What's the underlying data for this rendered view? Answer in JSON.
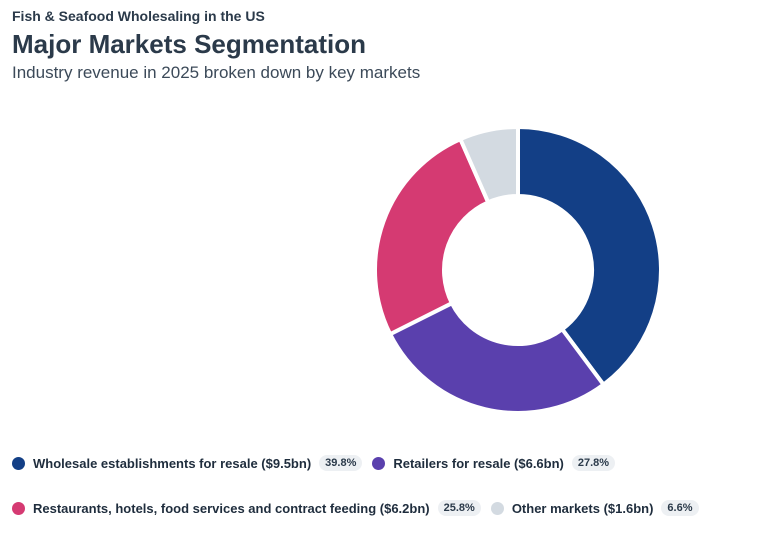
{
  "header": {
    "supertitle": "Fish & Seafood Wholesaling in the US",
    "title": "Major Markets Segmentation",
    "subtitle": "Industry revenue in 2025 broken down by key markets"
  },
  "chart_data": {
    "type": "pie",
    "variant": "donut",
    "title": "Major Markets Segmentation",
    "subtitle": "Industry revenue in 2025 broken down by key markets",
    "unit": "%",
    "legend_placement": "bottom",
    "slices": [
      {
        "label": "Wholesale establishments for resale ($9.5bn)",
        "value": 39.8,
        "value_label": "39.8%",
        "color": "#133f86"
      },
      {
        "label": "Retailers for resale ($6.6bn)",
        "value": 27.8,
        "value_label": "27.8%",
        "color": "#5a40ad"
      },
      {
        "label": "Restaurants, hotels, food services and contract feeding ($6.2bn)",
        "value": 25.8,
        "value_label": "25.8%",
        "color": "#d53a72"
      },
      {
        "label": "Other markets ($1.6bn)",
        "value": 6.6,
        "value_label": "6.6%",
        "color": "#d3dae1"
      }
    ]
  }
}
